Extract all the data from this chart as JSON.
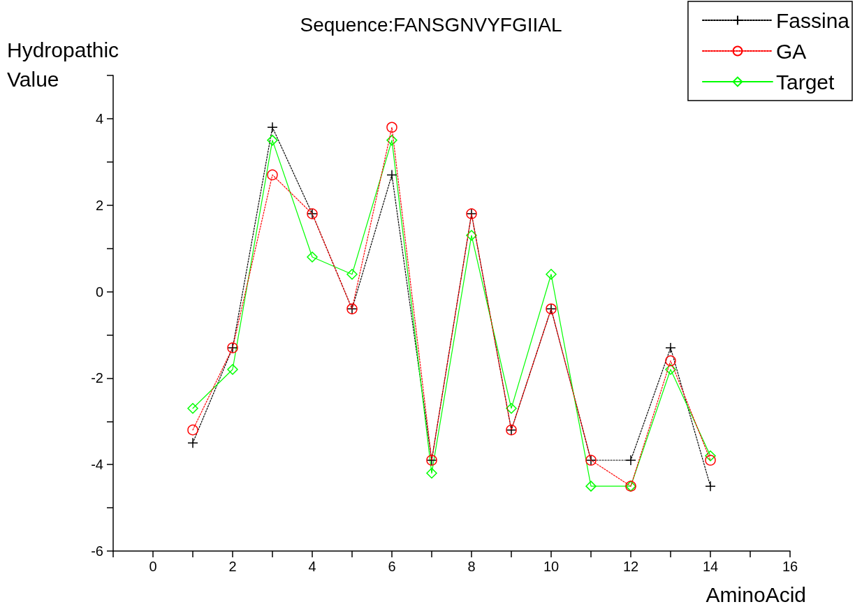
{
  "chart_data": {
    "type": "line",
    "title": "Sequence:FANSGNVYFGIIAL",
    "xlabel": "AminoAcid",
    "ylabel": "Hydropathic Value",
    "x": [
      1,
      2,
      3,
      4,
      5,
      6,
      7,
      8,
      9,
      10,
      11,
      12,
      13,
      14
    ],
    "series": [
      {
        "name": "Fassina",
        "color": "#000000",
        "marker": "cross",
        "line_style": "dotted",
        "values": [
          -3.5,
          -1.3,
          3.8,
          1.8,
          -0.4,
          2.7,
          -3.9,
          1.8,
          -3.2,
          -0.4,
          -3.9,
          -3.9,
          -1.3,
          -4.5
        ]
      },
      {
        "name": "GA",
        "color": "#ff0000",
        "marker": "circle",
        "line_style": "dotted",
        "values": [
          -3.2,
          -1.3,
          2.7,
          1.8,
          -0.4,
          3.8,
          -3.9,
          1.8,
          -3.2,
          -0.4,
          -3.9,
          -4.5,
          -1.6,
          -3.9
        ]
      },
      {
        "name": "Target",
        "color": "#00ff00",
        "marker": "diamond",
        "line_style": "solid",
        "values": [
          -2.7,
          -1.8,
          3.5,
          0.8,
          0.4,
          3.5,
          -4.2,
          1.3,
          -2.7,
          0.4,
          -4.5,
          -4.5,
          -1.8,
          -3.8
        ]
      }
    ],
    "xlim": [
      -1,
      16
    ],
    "xticks": [
      {
        "value": -1,
        "label": null
      },
      0,
      {
        "value": 1,
        "label": null
      },
      2,
      {
        "value": 3,
        "label": null
      },
      4,
      {
        "value": 5,
        "label": null
      },
      6,
      {
        "value": 7,
        "label": null
      },
      8,
      {
        "value": 9,
        "label": null
      },
      10,
      {
        "value": 11,
        "label": null
      },
      12,
      {
        "value": 13,
        "label": null
      },
      14,
      {
        "value": 15,
        "label": null
      },
      16
    ],
    "ylim": [
      -6,
      5
    ],
    "yticks": [
      -6,
      {
        "value": -5,
        "label": null
      },
      -4,
      {
        "value": -3,
        "label": null
      },
      -2,
      {
        "value": -1,
        "label": null
      },
      0,
      {
        "value": 1,
        "label": null
      },
      2,
      {
        "value": 3,
        "label": null
      },
      4,
      {
        "value": 5,
        "label": null
      }
    ],
    "grid": false,
    "legend": "top right"
  }
}
